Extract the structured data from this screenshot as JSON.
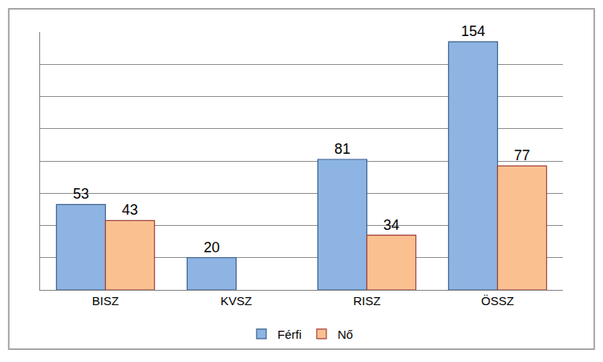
{
  "chart_data": {
    "type": "bar",
    "categories": [
      "BISZ",
      "KVSZ",
      "RISZ",
      "ÖSSZ"
    ],
    "series": [
      {
        "name": "Férfi",
        "color": "#8db4e2",
        "values": [
          53,
          20,
          81,
          154
        ]
      },
      {
        "name": "Nő",
        "color": "#fac090",
        "values": [
          43,
          null,
          34,
          77
        ]
      }
    ],
    "ylim": [
      0,
      160
    ],
    "yticks": [
      0,
      20,
      40,
      60,
      80,
      100,
      120,
      140,
      160
    ],
    "grid": true,
    "legend": "bottom",
    "data_labels": true,
    "tick_labels": "x"
  }
}
